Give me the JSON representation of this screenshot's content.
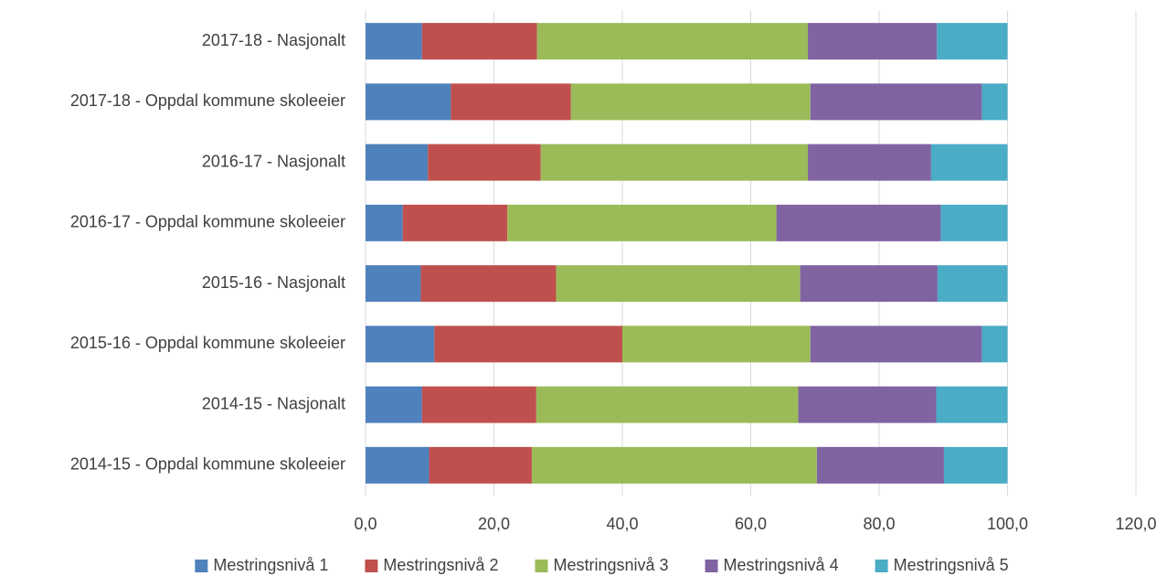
{
  "chart_data": {
    "type": "bar",
    "orientation": "horizontal",
    "stacked": true,
    "categories": [
      "2017-18 - Nasjonalt",
      "2017-18 - Oppdal kommune skoleeier",
      "2016-17 - Nasjonalt",
      "2016-17 - Oppdal kommune skoleeier",
      "2015-16 - Nasjonalt",
      "2015-16 - Oppdal kommune skoleeier",
      "2014-15 - Nasjonalt",
      "2014-15 - Oppdal kommune skoleeier"
    ],
    "series": [
      {
        "name": "Mestringsnivå 1",
        "color": "#4f81bd",
        "values": [
          8.8,
          13.3,
          9.7,
          5.8,
          8.6,
          10.7,
          8.8,
          9.9
        ]
      },
      {
        "name": "Mestringsnivå 2",
        "color": "#c0504d",
        "values": [
          17.9,
          18.7,
          17.6,
          16.3,
          21.1,
          29.3,
          17.8,
          16.0
        ]
      },
      {
        "name": "Mestringsnivå 3",
        "color": "#9bbb59",
        "values": [
          42.2,
          37.3,
          41.6,
          41.9,
          38.0,
          29.3,
          40.8,
          44.4
        ]
      },
      {
        "name": "Mestringsnivå 4",
        "color": "#8064a2",
        "values": [
          20.1,
          26.7,
          19.2,
          25.6,
          21.4,
          26.7,
          21.5,
          19.8
        ]
      },
      {
        "name": "Mestringsnivå 5",
        "color": "#4bacc6",
        "values": [
          11.0,
          4.0,
          11.9,
          10.4,
          10.9,
          4.0,
          11.1,
          9.9
        ]
      }
    ],
    "xlim": [
      0,
      120
    ],
    "xticks": [
      "0,0",
      "20,0",
      "40,0",
      "60,0",
      "80,0",
      "100,0",
      "120,0"
    ],
    "grid": true,
    "legend_position": "bottom"
  }
}
